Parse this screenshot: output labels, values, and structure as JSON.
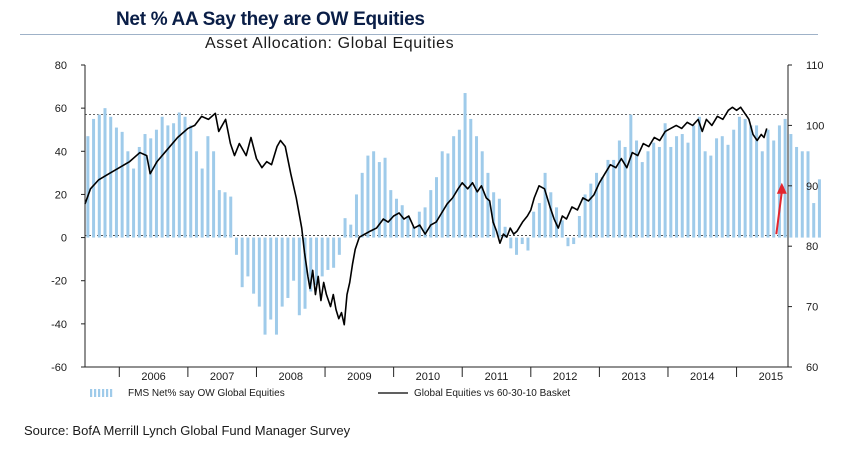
{
  "header": {
    "title": "Net % AA Say they are OW Equities",
    "subtitle": "Asset Allocation: Global Equities"
  },
  "source": "Source: BofA Merrill Lynch Global Fund Manager Survey",
  "colors": {
    "bars": "#9fcbea",
    "line": "#000000",
    "arrow": "#e3262e",
    "title": "#0a1e47"
  },
  "chart_data": {
    "type": "bar+line",
    "x_tick_labels": [
      "2006",
      "2007",
      "2008",
      "2009",
      "2010",
      "2011",
      "2012",
      "2013",
      "2014",
      "2015"
    ],
    "x_range": [
      2005.5,
      2015.75
    ],
    "left_axis": {
      "ylim": [
        -60,
        80
      ],
      "ticks": [
        "80",
        "60",
        "40",
        "20",
        "0",
        "-20",
        "-40",
        "-60"
      ]
    },
    "right_axis": {
      "ylim": [
        60,
        110
      ],
      "ticks": [
        "110",
        "100",
        "90",
        "80",
        "70",
        "60"
      ]
    },
    "reference_lines_left": [
      57,
      1
    ],
    "legend": {
      "position": "bottom",
      "bars_label": "FMS Net% say OW Global Equities",
      "line_label": "Global Equities vs 60-30-10 Basket"
    },
    "series": [
      {
        "name": "FMS Net% say OW Global Equities",
        "axis": "left",
        "type": "bar",
        "start": "2005-07",
        "frequency": "monthly",
        "values": [
          47,
          55,
          57,
          60,
          56,
          51,
          49,
          40,
          32,
          42,
          48,
          46,
          50,
          56,
          52,
          53,
          58,
          56,
          52,
          40,
          32,
          47,
          40,
          22,
          21,
          19,
          -8,
          -23,
          -18,
          -26,
          -32,
          -45,
          -38,
          -45,
          -32,
          -28,
          -20,
          -36,
          -33,
          -25,
          -22,
          -18,
          -15,
          -14,
          -8,
          9,
          6,
          20,
          30,
          38,
          40,
          35,
          37,
          22,
          18,
          15,
          10,
          5,
          12,
          14,
          22,
          28,
          40,
          39,
          47,
          50,
          67,
          55,
          47,
          40,
          30,
          21,
          18,
          5,
          -5,
          -8,
          -3,
          -6,
          12,
          16,
          30,
          21,
          14,
          8,
          -4,
          -3,
          10,
          20,
          25,
          30,
          28,
          36,
          36,
          45,
          42,
          57,
          45,
          35,
          40,
          44,
          42,
          53,
          42,
          47,
          48,
          44,
          52,
          56,
          40,
          38,
          46,
          47,
          43,
          50,
          56,
          55,
          52,
          52,
          40,
          50,
          45,
          52,
          55,
          48,
          42,
          40,
          40,
          16,
          27
        ]
      },
      {
        "name": "Global Equities vs 60-30-10 Basket",
        "axis": "right",
        "type": "line",
        "points": [
          [
            2005.5,
            87.0
          ],
          [
            2005.58,
            89.5
          ],
          [
            2005.7,
            91.0
          ],
          [
            2005.85,
            92.0
          ],
          [
            2006.0,
            93.0
          ],
          [
            2006.15,
            94.0
          ],
          [
            2006.3,
            95.5
          ],
          [
            2006.4,
            95.0
          ],
          [
            2006.45,
            92.0
          ],
          [
            2006.55,
            94.0
          ],
          [
            2006.7,
            96.0
          ],
          [
            2006.85,
            98.0
          ],
          [
            2007.0,
            99.5
          ],
          [
            2007.1,
            100.0
          ],
          [
            2007.2,
            101.5
          ],
          [
            2007.3,
            101.0
          ],
          [
            2007.4,
            102.0
          ],
          [
            2007.45,
            99.0
          ],
          [
            2007.55,
            101.0
          ],
          [
            2007.62,
            97.0
          ],
          [
            2007.68,
            95.0
          ],
          [
            2007.75,
            97.0
          ],
          [
            2007.85,
            95.0
          ],
          [
            2007.92,
            98.0
          ],
          [
            2008.0,
            94.5
          ],
          [
            2008.08,
            93.0
          ],
          [
            2008.15,
            94.0
          ],
          [
            2008.22,
            93.5
          ],
          [
            2008.3,
            96.5
          ],
          [
            2008.35,
            97.5
          ],
          [
            2008.42,
            96.5
          ],
          [
            2008.5,
            92.0
          ],
          [
            2008.58,
            88.0
          ],
          [
            2008.66,
            83.0
          ],
          [
            2008.7,
            79.0
          ],
          [
            2008.75,
            75.0
          ],
          [
            2008.78,
            73.0
          ],
          [
            2008.82,
            76.0
          ],
          [
            2008.86,
            72.0
          ],
          [
            2008.9,
            75.0
          ],
          [
            2008.94,
            71.0
          ],
          [
            2008.98,
            74.0
          ],
          [
            2009.02,
            72.0
          ],
          [
            2009.08,
            70.0
          ],
          [
            2009.12,
            72.0
          ],
          [
            2009.16,
            69.5
          ],
          [
            2009.2,
            68.0
          ],
          [
            2009.24,
            69.0
          ],
          [
            2009.28,
            67.0
          ],
          [
            2009.32,
            72.0
          ],
          [
            2009.36,
            74.0
          ],
          [
            2009.4,
            77.0
          ],
          [
            2009.44,
            79.5
          ],
          [
            2009.5,
            81.5
          ],
          [
            2009.58,
            82.0
          ],
          [
            2009.66,
            82.5
          ],
          [
            2009.75,
            83.0
          ],
          [
            2009.85,
            84.5
          ],
          [
            2009.92,
            84.0
          ],
          [
            2010.0,
            85.0
          ],
          [
            2010.08,
            85.5
          ],
          [
            2010.15,
            84.5
          ],
          [
            2010.22,
            85.0
          ],
          [
            2010.3,
            83.0
          ],
          [
            2010.38,
            83.5
          ],
          [
            2010.46,
            82.0
          ],
          [
            2010.54,
            83.5
          ],
          [
            2010.62,
            84.0
          ],
          [
            2010.7,
            85.5
          ],
          [
            2010.78,
            87.0
          ],
          [
            2010.86,
            88.0
          ],
          [
            2010.94,
            89.5
          ],
          [
            2011.0,
            90.5
          ],
          [
            2011.08,
            89.5
          ],
          [
            2011.15,
            90.5
          ],
          [
            2011.22,
            89.0
          ],
          [
            2011.28,
            90.0
          ],
          [
            2011.35,
            88.0
          ],
          [
            2011.4,
            87.5
          ],
          [
            2011.45,
            84.0
          ],
          [
            2011.5,
            82.5
          ],
          [
            2011.55,
            80.5
          ],
          [
            2011.6,
            82.0
          ],
          [
            2011.65,
            81.5
          ],
          [
            2011.7,
            83.0
          ],
          [
            2011.75,
            82.0
          ],
          [
            2011.8,
            82.5
          ],
          [
            2011.88,
            84.0
          ],
          [
            2011.95,
            85.0
          ],
          [
            2012.0,
            86.0
          ],
          [
            2012.05,
            88.0
          ],
          [
            2012.12,
            90.0
          ],
          [
            2012.2,
            89.5
          ],
          [
            2012.28,
            86.5
          ],
          [
            2012.34,
            84.5
          ],
          [
            2012.4,
            83.0
          ],
          [
            2012.46,
            85.0
          ],
          [
            2012.52,
            84.5
          ],
          [
            2012.6,
            86.5
          ],
          [
            2012.68,
            86.0
          ],
          [
            2012.76,
            88.0
          ],
          [
            2012.84,
            87.5
          ],
          [
            2012.92,
            88.5
          ],
          [
            2013.0,
            90.5
          ],
          [
            2013.08,
            92.0
          ],
          [
            2013.16,
            93.5
          ],
          [
            2013.24,
            93.0
          ],
          [
            2013.32,
            94.5
          ],
          [
            2013.4,
            93.0
          ],
          [
            2013.48,
            95.5
          ],
          [
            2013.56,
            95.0
          ],
          [
            2013.64,
            97.0
          ],
          [
            2013.72,
            96.5
          ],
          [
            2013.8,
            98.0
          ],
          [
            2013.88,
            97.5
          ],
          [
            2013.96,
            99.0
          ],
          [
            2014.04,
            99.5
          ],
          [
            2014.12,
            100.0
          ],
          [
            2014.2,
            99.5
          ],
          [
            2014.28,
            100.5
          ],
          [
            2014.36,
            100.0
          ],
          [
            2014.44,
            101.0
          ],
          [
            2014.5,
            99.0
          ],
          [
            2014.56,
            101.0
          ],
          [
            2014.64,
            100.0
          ],
          [
            2014.72,
            101.5
          ],
          [
            2014.8,
            101.0
          ],
          [
            2014.88,
            102.5
          ],
          [
            2014.94,
            103.0
          ],
          [
            2015.0,
            102.5
          ],
          [
            2015.06,
            103.0
          ],
          [
            2015.12,
            102.0
          ],
          [
            2015.18,
            101.0
          ],
          [
            2015.24,
            98.5
          ],
          [
            2015.3,
            97.5
          ],
          [
            2015.36,
            98.5
          ],
          [
            2015.4,
            98.0
          ],
          [
            2015.44,
            99.5
          ]
        ]
      }
    ],
    "annotation": {
      "type": "arrow",
      "color": "#e3262e",
      "from": [
        2015.58,
        82.0
      ],
      "to": [
        2015.66,
        90.0
      ],
      "axis": "right"
    }
  }
}
